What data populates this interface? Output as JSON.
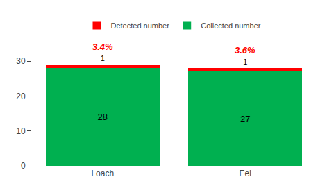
{
  "chart_data": {
    "type": "bar",
    "stacked": true,
    "categories": [
      "Loach",
      "Eel"
    ],
    "series": [
      {
        "name": "Collected number",
        "color": "#00b050",
        "values": [
          28,
          27
        ]
      },
      {
        "name": "Detected number",
        "color": "#ff0000",
        "values": [
          1,
          1
        ]
      }
    ],
    "data_labels": true,
    "annotations": [
      {
        "category": "Loach",
        "text": "3.4%"
      },
      {
        "category": "Eel",
        "text": "3.6%"
      }
    ],
    "ylim": [
      0,
      34
    ],
    "yticks": [
      0,
      10,
      20,
      30
    ],
    "grid": false,
    "legend": "top"
  }
}
